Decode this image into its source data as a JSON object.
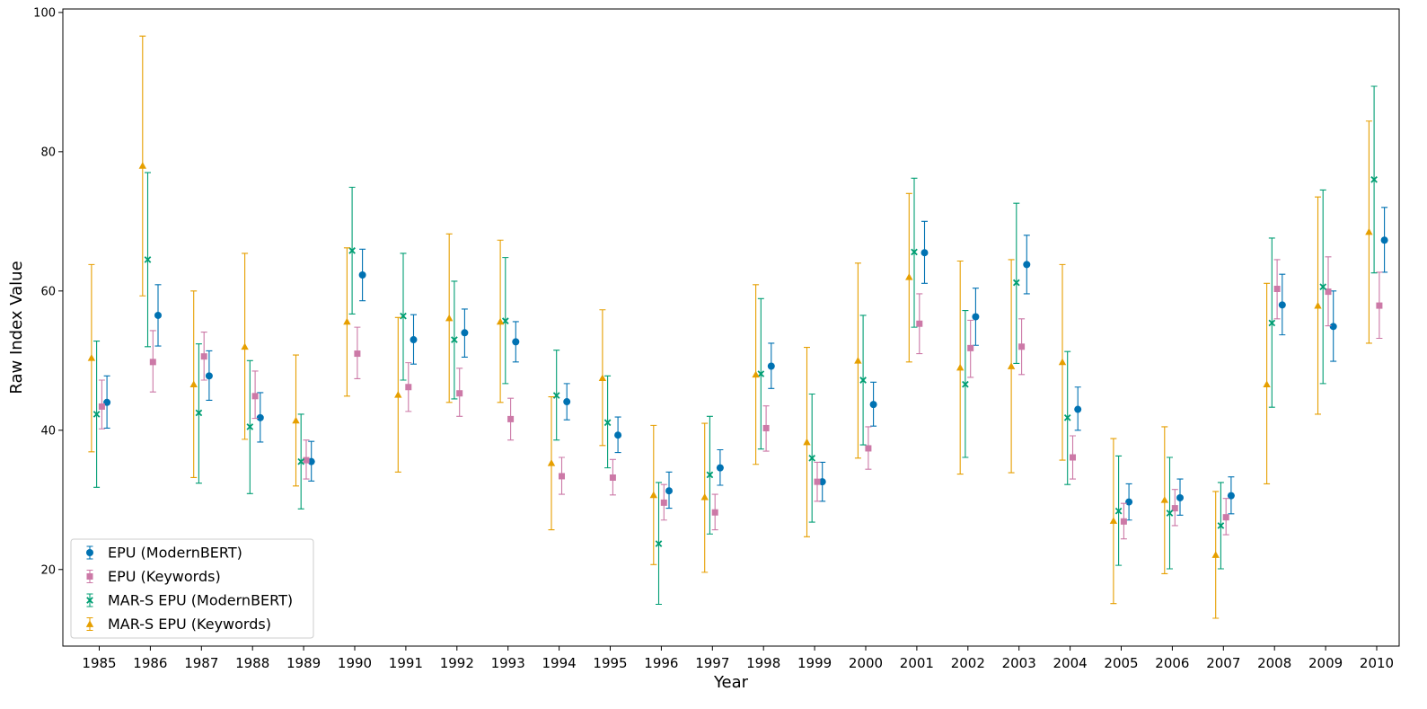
{
  "chart_data": {
    "type": "scatter",
    "title": "",
    "xlabel": "Year",
    "ylabel": "Raw Index Value",
    "ylim": [
      9,
      100.5
    ],
    "yticks": [
      20,
      40,
      60,
      80,
      100
    ],
    "grid": false,
    "legend_position": "bottom-left",
    "categories": [
      "1985",
      "1986",
      "1987",
      "1988",
      "1989",
      "1990",
      "1991",
      "1992",
      "1993",
      "1994",
      "1995",
      "1996",
      "1997",
      "1998",
      "1999",
      "2000",
      "2001",
      "2002",
      "2003",
      "2004",
      "2005",
      "2006",
      "2007",
      "2008",
      "2009",
      "2010"
    ],
    "series": [
      {
        "name": "EPU (ModernBERT)",
        "color": "#0072b2",
        "marker": "circle",
        "values": [
          44.0,
          56.5,
          47.8,
          41.8,
          35.5,
          62.3,
          53.0,
          54.0,
          52.7,
          44.1,
          39.3,
          31.3,
          34.6,
          49.2,
          32.6,
          43.7,
          65.5,
          56.3,
          63.8,
          43.0,
          29.7,
          30.3,
          30.6,
          58.0,
          54.9,
          67.3
        ],
        "lower": [
          40.3,
          52.1,
          44.3,
          38.3,
          32.7,
          58.6,
          49.5,
          50.5,
          49.8,
          41.5,
          36.8,
          28.8,
          32.1,
          46.0,
          29.8,
          40.6,
          61.1,
          52.2,
          59.6,
          40.0,
          27.1,
          27.8,
          28.0,
          53.7,
          49.9,
          62.7
        ],
        "upper": [
          47.8,
          60.9,
          51.4,
          45.4,
          38.4,
          66.0,
          56.6,
          57.4,
          55.6,
          46.7,
          41.9,
          34.0,
          37.2,
          52.5,
          35.4,
          46.9,
          70.0,
          60.4,
          68.0,
          46.2,
          32.3,
          33.0,
          33.3,
          62.4,
          60.0,
          72.0
        ]
      },
      {
        "name": "EPU (Keywords)",
        "color": "#cc79a7",
        "marker": "square",
        "values": [
          43.4,
          49.8,
          50.6,
          44.9,
          35.7,
          51.0,
          46.2,
          45.3,
          41.6,
          33.4,
          33.2,
          29.6,
          28.2,
          40.3,
          32.6,
          37.4,
          55.3,
          51.8,
          52.0,
          36.1,
          26.9,
          28.8,
          27.5,
          60.3,
          59.9,
          57.9
        ],
        "lower": [
          40.2,
          45.5,
          47.2,
          41.7,
          33.0,
          47.4,
          42.7,
          42.0,
          38.6,
          30.8,
          30.7,
          27.1,
          25.7,
          37.0,
          29.8,
          34.4,
          51.0,
          47.6,
          48.0,
          33.0,
          24.4,
          26.3,
          25.0,
          56.0,
          55.0,
          53.2
        ],
        "upper": [
          47.2,
          54.3,
          54.1,
          48.5,
          38.6,
          54.8,
          49.7,
          48.9,
          44.6,
          36.1,
          35.8,
          32.2,
          30.8,
          43.5,
          35.4,
          40.5,
          59.6,
          55.8,
          56.0,
          39.2,
          29.5,
          31.5,
          30.2,
          64.5,
          64.9,
          62.7
        ]
      },
      {
        "name": "MAR-S EPU (ModernBERT)",
        "color": "#009e73",
        "marker": "x",
        "values": [
          42.3,
          64.5,
          42.5,
          40.5,
          35.5,
          65.8,
          56.4,
          53.0,
          55.7,
          45.0,
          41.1,
          23.7,
          33.6,
          48.1,
          36.0,
          47.2,
          65.6,
          46.6,
          61.2,
          41.8,
          28.4,
          28.1,
          26.3,
          55.4,
          60.6,
          76.0
        ],
        "lower": [
          31.8,
          52.0,
          32.4,
          30.9,
          28.7,
          56.7,
          47.2,
          44.5,
          46.7,
          38.6,
          34.6,
          15.0,
          25.1,
          37.3,
          26.8,
          37.9,
          54.8,
          36.1,
          49.6,
          32.2,
          20.6,
          20.1,
          20.1,
          43.3,
          46.7,
          62.6
        ],
        "upper": [
          52.8,
          77.0,
          52.4,
          50.0,
          42.3,
          74.9,
          65.4,
          61.4,
          64.8,
          51.5,
          47.8,
          32.5,
          42.0,
          58.9,
          45.2,
          56.5,
          76.2,
          57.2,
          72.6,
          51.3,
          36.3,
          36.1,
          32.5,
          67.6,
          74.5,
          89.4
        ]
      },
      {
        "name": "MAR-S EPU (Keywords)",
        "color": "#e69f00",
        "marker": "triangle",
        "values": [
          50.4,
          78.0,
          46.6,
          52.0,
          41.4,
          55.6,
          45.1,
          56.1,
          55.6,
          35.3,
          47.5,
          30.7,
          30.4,
          48.0,
          38.3,
          50.0,
          62.0,
          49.0,
          49.2,
          49.8,
          27.0,
          30.0,
          22.1,
          46.6,
          57.9,
          68.5
        ],
        "lower": [
          36.9,
          59.3,
          33.2,
          38.7,
          32.0,
          44.9,
          34.0,
          44.0,
          44.0,
          25.7,
          37.8,
          20.7,
          19.6,
          35.1,
          24.7,
          36.0,
          49.8,
          33.7,
          33.9,
          35.7,
          15.1,
          19.4,
          13.0,
          32.3,
          42.3,
          52.5
        ],
        "upper": [
          63.8,
          96.6,
          60.0,
          65.4,
          50.8,
          66.2,
          56.2,
          68.2,
          67.3,
          44.8,
          57.3,
          40.7,
          41.0,
          60.9,
          51.9,
          64.0,
          74.0,
          64.3,
          64.5,
          63.8,
          38.8,
          40.5,
          31.2,
          61.1,
          73.5,
          84.4
        ]
      }
    ]
  }
}
